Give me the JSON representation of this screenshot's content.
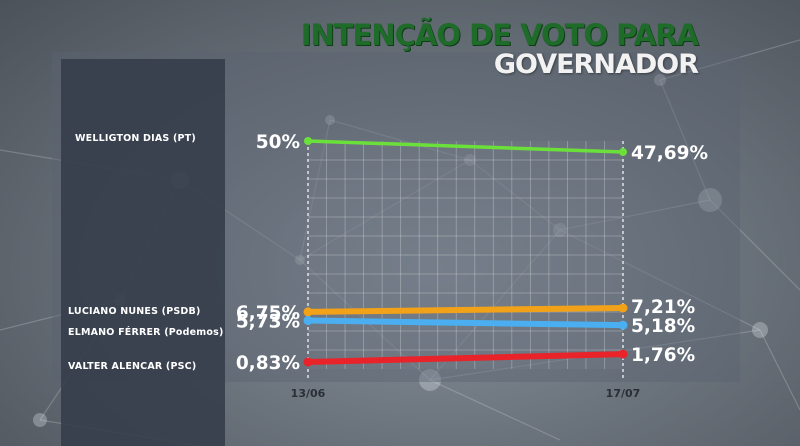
{
  "title": {
    "line1": "INTENÇÃO DE VOTO PARA",
    "line2": "GOVERNADOR"
  },
  "chart_data": {
    "type": "line",
    "x": [
      "13/06",
      "17/07"
    ],
    "series": [
      {
        "name": "WELLIGTON DIAS (PT)",
        "values": [
          50,
          47.69
        ],
        "labels": [
          "50%",
          "47,69%"
        ],
        "color": "#6be03a"
      },
      {
        "name": "LUCIANO NUNES  (PSDB)",
        "values": [
          6.75,
          7.21
        ],
        "labels": [
          "6,75%",
          "7,21%"
        ],
        "color": "#f2a218"
      },
      {
        "name": "ELMANO FÉRRER  (Podemos)",
        "values": [
          5.73,
          5.18
        ],
        "labels": [
          "5,73%",
          "5,18%"
        ],
        "color": "#4aaef0"
      },
      {
        "name": "VALTER ALENCAR (PSC)",
        "values": [
          0.83,
          1.76
        ],
        "labels": [
          "0,83%",
          "1,76%"
        ],
        "color": "#e8242a"
      }
    ],
    "grid": true,
    "legend": "left"
  }
}
